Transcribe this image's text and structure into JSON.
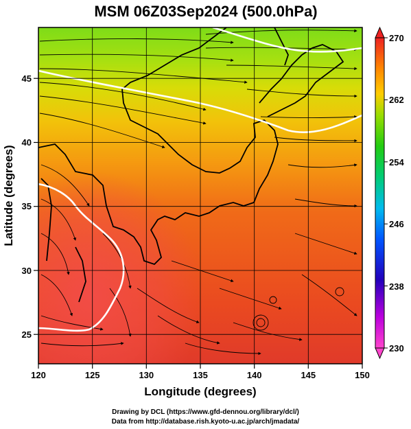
{
  "title": "MSM 06Z03Sep2024 (500.0hPa)",
  "xlabel": "Longitude (degrees)",
  "ylabel": "Latitude  (degrees)",
  "x_ticks": [
    "120",
    "125",
    "130",
    "135",
    "140",
    "145",
    "150"
  ],
  "y_ticks": [
    "25",
    "30",
    "35",
    "40",
    "45"
  ],
  "colorbar": {
    "labels": [
      "270",
      "262",
      "254",
      "246",
      "238",
      "230"
    ],
    "min": 230,
    "max": 270
  },
  "credits": {
    "line1": "Drawing by DCL (https://www.gfd-dennou.org/library/dcl/)",
    "line2": "Data from http://database.rish.kyoto-u.ac.jp/arch/jmadata/"
  },
  "chart_data": {
    "type": "heatmap",
    "variable": "temperature (K) with wind streamlines",
    "xlim": [
      120,
      150
    ],
    "ylim": [
      22.4,
      47.6
    ],
    "clim": [
      230,
      270
    ],
    "colormap": [
      "#ff44aa",
      "#aa00ff",
      "#2200cc",
      "#0066ff",
      "#00ccee",
      "#00cc66",
      "#22cc00",
      "#aadd00",
      "#ffcc00",
      "#ff8800",
      "#ff3300",
      "#ee2222"
    ],
    "contour_levels": [
      262,
      268
    ],
    "grid": true
  }
}
